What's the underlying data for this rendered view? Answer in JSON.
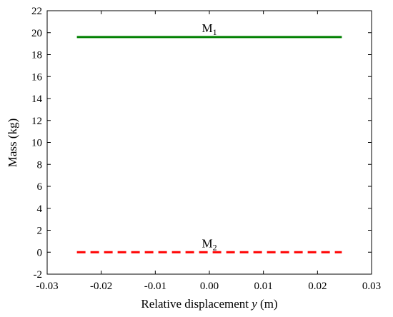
{
  "chart_data": {
    "type": "line",
    "xlabel_main": "Relative displacement ",
    "xlabel_var": "y",
    "xlabel_unit": " (m)",
    "ylabel": "Mass (kg)",
    "xlim": [
      -0.03,
      0.03
    ],
    "ylim": [
      -2,
      22
    ],
    "xticks": [
      "-0.03",
      "-0.02",
      "-0.01",
      "0.00",
      "0.01",
      "0.02",
      "0.03"
    ],
    "yticks": [
      "-2",
      "0",
      "2",
      "4",
      "6",
      "8",
      "10",
      "12",
      "14",
      "16",
      "18",
      "20",
      "22"
    ],
    "grid": false,
    "series": [
      {
        "name": "M",
        "subscript": "1",
        "x": [
          -0.0245,
          0.0245
        ],
        "y": [
          19.6,
          19.6
        ],
        "color": "#008000",
        "style": "solid"
      },
      {
        "name": "M",
        "subscript": "2",
        "x": [
          -0.0245,
          0.0245
        ],
        "y": [
          0,
          0
        ],
        "color": "#ff0000",
        "style": "dashed"
      }
    ]
  }
}
